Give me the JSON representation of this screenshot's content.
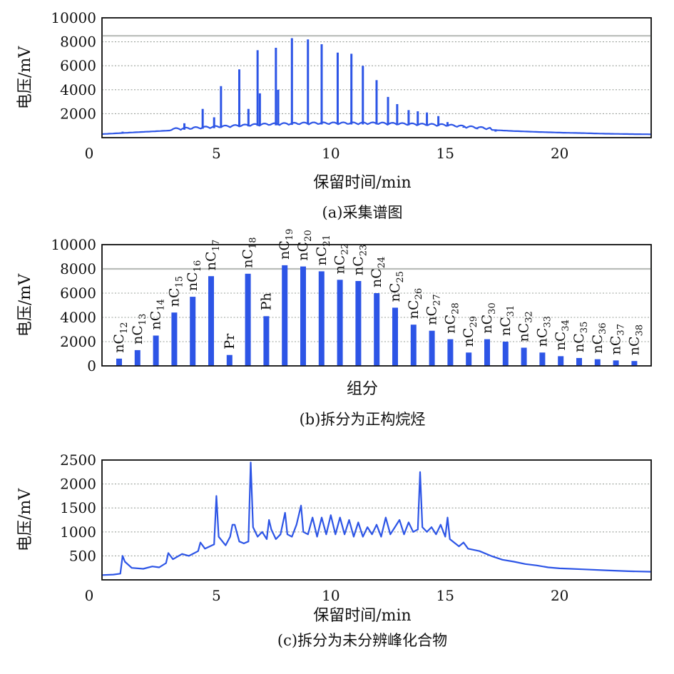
{
  "chart_data": [
    {
      "panel": "a",
      "type": "line",
      "caption": "(a)采集谱图",
      "xlabel": "保留时间/min",
      "ylabel": "电压/mV",
      "xlim": [
        0,
        24
      ],
      "ylim": [
        0,
        10000
      ],
      "xticks": [
        "0",
        "5",
        "10",
        "15",
        "20"
      ],
      "yticks": [
        "2000",
        "4000",
        "6000",
        "8000",
        "10000"
      ],
      "grid": "horizontal dashed",
      "series": [
        {
          "color": "#2d55e6",
          "baseline": [
            [
              0.0,
              300
            ],
            [
              1.0,
              400
            ],
            [
              2.0,
              500
            ],
            [
              3.0,
              600
            ],
            [
              4.0,
              700
            ],
            [
              5.0,
              800
            ],
            [
              6.0,
              900
            ],
            [
              7.0,
              1000
            ],
            [
              8.0,
              1050
            ],
            [
              9.0,
              1100
            ],
            [
              10.0,
              1100
            ],
            [
              11.0,
              1100
            ],
            [
              12.0,
              1100
            ],
            [
              13.0,
              1050
            ],
            [
              14.0,
              1000
            ],
            [
              15.0,
              950
            ],
            [
              16.0,
              800
            ],
            [
              17.0,
              650
            ],
            [
              18.0,
              550
            ],
            [
              19.0,
              480
            ],
            [
              20.0,
              420
            ],
            [
              21.0,
              380
            ],
            [
              22.0,
              330
            ],
            [
              23.0,
              300
            ],
            [
              24.0,
              280
            ]
          ],
          "peaks": [
            {
              "x": 0.9,
              "y": 500
            },
            {
              "x": 2.8,
              "y": 600
            },
            {
              "x": 3.6,
              "y": 1200
            },
            {
              "x": 4.4,
              "y": 2400
            },
            {
              "x": 4.9,
              "y": 1700
            },
            {
              "x": 5.2,
              "y": 4300
            },
            {
              "x": 6.0,
              "y": 5700
            },
            {
              "x": 6.4,
              "y": 2400
            },
            {
              "x": 6.8,
              "y": 7300
            },
            {
              "x": 6.9,
              "y": 3700
            },
            {
              "x": 7.6,
              "y": 7500
            },
            {
              "x": 7.7,
              "y": 4000
            },
            {
              "x": 8.3,
              "y": 8300
            },
            {
              "x": 9.0,
              "y": 8200
            },
            {
              "x": 9.6,
              "y": 7800
            },
            {
              "x": 10.3,
              "y": 7100
            },
            {
              "x": 10.9,
              "y": 7000
            },
            {
              "x": 11.4,
              "y": 6000
            },
            {
              "x": 12.0,
              "y": 4800
            },
            {
              "x": 12.5,
              "y": 3400
            },
            {
              "x": 12.9,
              "y": 2800
            },
            {
              "x": 13.4,
              "y": 2300
            },
            {
              "x": 13.8,
              "y": 2200
            },
            {
              "x": 14.2,
              "y": 2100
            },
            {
              "x": 14.7,
              "y": 1800
            },
            {
              "x": 15.1,
              "y": 1300
            },
            {
              "x": 15.8,
              "y": 900
            },
            {
              "x": 16.4,
              "y": 700
            },
            {
              "x": 17.2,
              "y": 500
            }
          ]
        }
      ]
    },
    {
      "panel": "b",
      "type": "bar",
      "caption": "(b)拆分为正构烷烃",
      "xlabel": "组分",
      "ylabel": "电压/mV",
      "ylim": [
        0,
        10000
      ],
      "yticks": [
        "0",
        "2000",
        "4000",
        "6000",
        "8000",
        "10000"
      ],
      "grid": "horizontal dashed",
      "color": "#2d55e6",
      "categories": [
        {
          "base": "nC",
          "sub": "12",
          "value": 600
        },
        {
          "base": "nC",
          "sub": "13",
          "value": 1300
        },
        {
          "base": "nC",
          "sub": "14",
          "value": 2500
        },
        {
          "base": "nC",
          "sub": "15",
          "value": 4400
        },
        {
          "base": "nC",
          "sub": "16",
          "value": 5700
        },
        {
          "base": "nC",
          "sub": "17",
          "value": 7400
        },
        {
          "base": "Pr",
          "sub": "",
          "value": 900
        },
        {
          "base": "nC",
          "sub": "18",
          "value": 7600
        },
        {
          "base": "Ph",
          "sub": "",
          "value": 4100
        },
        {
          "base": "nC",
          "sub": "19",
          "value": 8300
        },
        {
          "base": "nC",
          "sub": "20",
          "value": 8200
        },
        {
          "base": "nC",
          "sub": "21",
          "value": 7800
        },
        {
          "base": "nC",
          "sub": "22",
          "value": 7100
        },
        {
          "base": "nC",
          "sub": "23",
          "value": 7000
        },
        {
          "base": "nC",
          "sub": "24",
          "value": 6000
        },
        {
          "base": "nC",
          "sub": "25",
          "value": 4800
        },
        {
          "base": "nC",
          "sub": "26",
          "value": 3400
        },
        {
          "base": "nC",
          "sub": "27",
          "value": 2900
        },
        {
          "base": "nC",
          "sub": "28",
          "value": 2200
        },
        {
          "base": "nC",
          "sub": "29",
          "value": 1100
        },
        {
          "base": "nC",
          "sub": "30",
          "value": 2200
        },
        {
          "base": "nC",
          "sub": "31",
          "value": 2000
        },
        {
          "base": "nC",
          "sub": "32",
          "value": 1500
        },
        {
          "base": "nC",
          "sub": "33",
          "value": 1100
        },
        {
          "base": "nC",
          "sub": "34",
          "value": 800
        },
        {
          "base": "nC",
          "sub": "35",
          "value": 650
        },
        {
          "base": "nC",
          "sub": "36",
          "value": 550
        },
        {
          "base": "nC",
          "sub": "37",
          "value": 450
        },
        {
          "base": "nC",
          "sub": "38",
          "value": 400
        }
      ]
    },
    {
      "panel": "c",
      "type": "line",
      "caption": "(c)拆分为未分辨峰化合物",
      "xlabel": "保留时间/min",
      "ylabel": "电压/mV",
      "xlim": [
        0,
        24
      ],
      "ylim": [
        0,
        2500
      ],
      "xticks": [
        "0",
        "5",
        "10",
        "15",
        "20"
      ],
      "yticks": [
        "500",
        "1000",
        "1500",
        "2000",
        "2500"
      ],
      "grid": "horizontal dashed",
      "series": [
        {
          "color": "#2d55e6",
          "points": [
            [
              0.0,
              100
            ],
            [
              0.5,
              110
            ],
            [
              0.8,
              130
            ],
            [
              0.9,
              500
            ],
            [
              1.0,
              380
            ],
            [
              1.3,
              250
            ],
            [
              1.8,
              230
            ],
            [
              2.2,
              280
            ],
            [
              2.5,
              260
            ],
            [
              2.8,
              350
            ],
            [
              2.9,
              560
            ],
            [
              3.1,
              430
            ],
            [
              3.5,
              540
            ],
            [
              3.8,
              500
            ],
            [
              4.2,
              600
            ],
            [
              4.3,
              780
            ],
            [
              4.5,
              650
            ],
            [
              4.9,
              740
            ],
            [
              5.0,
              1750
            ],
            [
              5.1,
              900
            ],
            [
              5.4,
              720
            ],
            [
              5.6,
              900
            ],
            [
              5.7,
              1150
            ],
            [
              5.8,
              1150
            ],
            [
              6.0,
              800
            ],
            [
              6.2,
              760
            ],
            [
              6.4,
              800
            ],
            [
              6.5,
              2450
            ],
            [
              6.6,
              1100
            ],
            [
              6.8,
              900
            ],
            [
              7.0,
              1000
            ],
            [
              7.2,
              850
            ],
            [
              7.3,
              1250
            ],
            [
              7.4,
              1050
            ],
            [
              7.6,
              850
            ],
            [
              7.8,
              950
            ],
            [
              8.0,
              1400
            ],
            [
              8.1,
              950
            ],
            [
              8.3,
              900
            ],
            [
              8.5,
              1150
            ],
            [
              8.7,
              1550
            ],
            [
              8.8,
              1000
            ],
            [
              9.0,
              950
            ],
            [
              9.2,
              1300
            ],
            [
              9.4,
              900
            ],
            [
              9.6,
              1300
            ],
            [
              9.8,
              950
            ],
            [
              10.0,
              1350
            ],
            [
              10.2,
              950
            ],
            [
              10.4,
              1300
            ],
            [
              10.6,
              950
            ],
            [
              10.8,
              1250
            ],
            [
              11.0,
              900
            ],
            [
              11.2,
              1200
            ],
            [
              11.4,
              900
            ],
            [
              11.6,
              1100
            ],
            [
              11.8,
              950
            ],
            [
              12.0,
              1150
            ],
            [
              12.2,
              900
            ],
            [
              12.4,
              1300
            ],
            [
              12.6,
              950
            ],
            [
              12.8,
              1100
            ],
            [
              13.0,
              1250
            ],
            [
              13.2,
              950
            ],
            [
              13.4,
              1200
            ],
            [
              13.6,
              1000
            ],
            [
              13.8,
              1050
            ],
            [
              13.9,
              2250
            ],
            [
              14.0,
              1100
            ],
            [
              14.2,
              1000
            ],
            [
              14.4,
              1100
            ],
            [
              14.6,
              950
            ],
            [
              14.8,
              1150
            ],
            [
              15.0,
              900
            ],
            [
              15.1,
              1300
            ],
            [
              15.2,
              850
            ],
            [
              15.6,
              700
            ],
            [
              15.8,
              780
            ],
            [
              16.0,
              650
            ],
            [
              16.5,
              600
            ],
            [
              17.0,
              500
            ],
            [
              17.5,
              420
            ],
            [
              18.0,
              380
            ],
            [
              18.5,
              330
            ],
            [
              19.0,
              300
            ],
            [
              19.5,
              260
            ],
            [
              20.0,
              240
            ],
            [
              20.5,
              230
            ],
            [
              21.0,
              220
            ],
            [
              22.0,
              200
            ],
            [
              23.0,
              180
            ],
            [
              24.0,
              170
            ]
          ]
        }
      ]
    }
  ]
}
